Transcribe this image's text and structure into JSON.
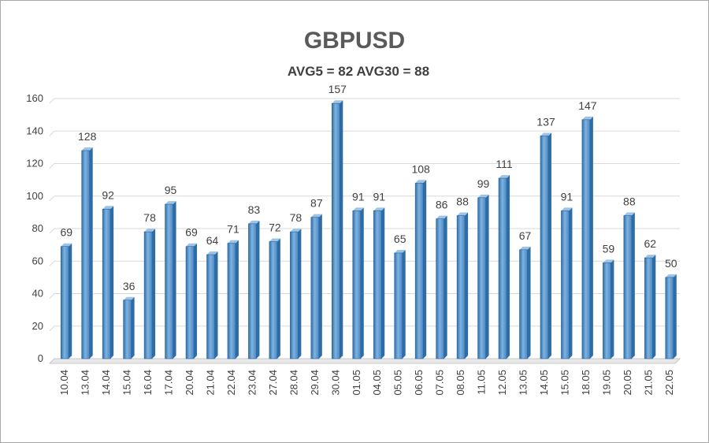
{
  "chart_data": {
    "type": "bar",
    "title": "GBPUSD",
    "subtitle": "AVG5 = 82 AVG30 = 88",
    "categories": [
      "10.04",
      "13.04",
      "14.04",
      "15.04",
      "16.04",
      "17.04",
      "20.04",
      "21.04",
      "22.04",
      "23.04",
      "27.04",
      "28.04",
      "29.04",
      "30.04",
      "01.05",
      "04.05",
      "05.05",
      "06.05",
      "07.05",
      "08.05",
      "11.05",
      "12.05",
      "13.05",
      "14.05",
      "15.05",
      "18.05",
      "19.05",
      "20.05",
      "21.05",
      "22.05"
    ],
    "values": [
      69,
      128,
      92,
      36,
      78,
      95,
      69,
      64,
      71,
      83,
      72,
      78,
      87,
      157,
      91,
      91,
      65,
      108,
      86,
      88,
      99,
      111,
      67,
      137,
      91,
      147,
      59,
      88,
      62,
      50
    ],
    "ylim": [
      0,
      160
    ],
    "yticks": [
      0,
      20,
      40,
      60,
      80,
      100,
      120,
      140,
      160
    ],
    "grid": true,
    "legend": "none",
    "colors": {
      "bar": "#5b9bd5",
      "bar_dark": "#2e6da4",
      "bar_light": "#9dc3e6",
      "grid": "#d9d9d9"
    }
  }
}
